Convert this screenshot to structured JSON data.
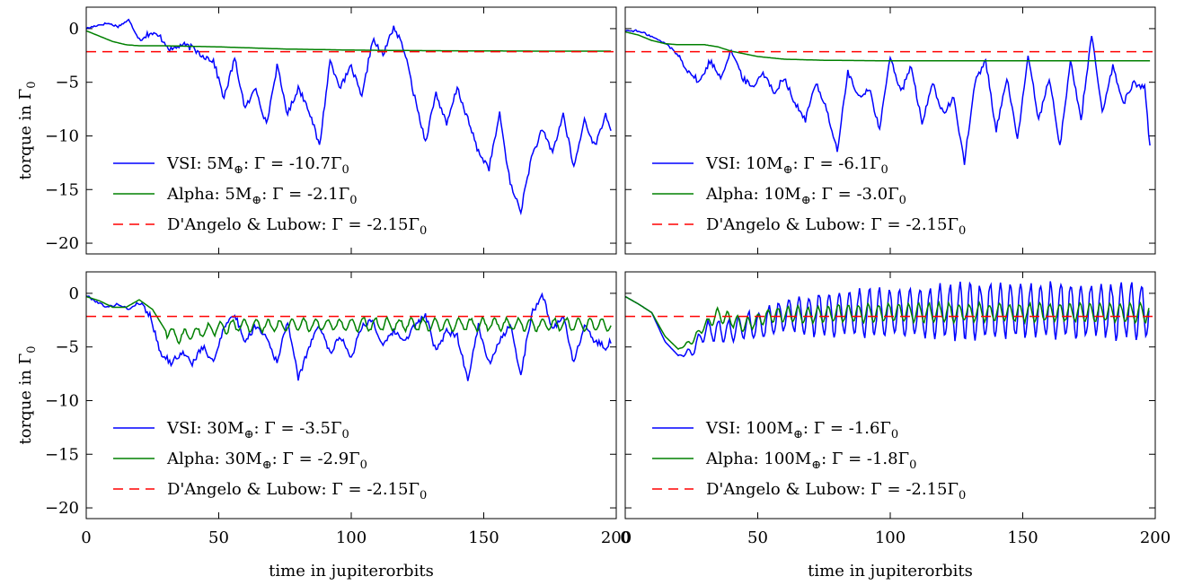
{
  "chart_data": [
    {
      "type": "line",
      "panel": "top-left",
      "xlabel": "",
      "ylabel": "torque in Γ0",
      "xlim": [
        0,
        200
      ],
      "ylim": [
        -21,
        2
      ],
      "xticks": [
        0,
        50,
        100,
        150,
        200
      ],
      "yticks": [
        0,
        -5,
        -10,
        -15,
        -20
      ],
      "ytick_labels": [
        "0",
        "−5",
        "−10",
        "−15",
        "−20"
      ],
      "legend_position": "lower-left",
      "series": [
        {
          "name": "VSI: 5M⊕: Γ = -10.7Γ0",
          "label_prefix": "VSI: 5M",
          "label_mid": ": Γ = -10.7Γ",
          "style": "solid",
          "color": "#0000ff",
          "kind": "vsi",
          "seed": 11,
          "final": -10.7,
          "x": [
            0,
            4,
            8,
            12,
            16,
            20,
            24,
            28,
            32,
            36,
            40,
            44,
            48,
            52,
            56,
            60,
            64,
            68,
            72,
            76,
            80,
            84,
            88,
            92,
            96,
            100,
            104,
            108,
            112,
            116,
            120,
            124,
            128,
            132,
            136,
            140,
            144,
            148,
            152,
            156,
            160,
            164,
            168,
            172,
            176,
            180,
            184,
            188,
            192,
            196,
            198
          ],
          "y": [
            0,
            0.3,
            0.5,
            0.2,
            0.8,
            -1.0,
            -0.4,
            -0.8,
            -2.0,
            -1.5,
            -1.8,
            -2.5,
            -3.0,
            -6.5,
            -2.8,
            -7.5,
            -5.5,
            -9.0,
            -3.5,
            -8.0,
            -5.5,
            -7.5,
            -11.0,
            -3.0,
            -5.5,
            -3.5,
            -6.5,
            -1.0,
            -2.5,
            0.2,
            -2.0,
            -6.5,
            -10.5,
            -6.0,
            -9.0,
            -5.5,
            -8.5,
            -11.5,
            -13.0,
            -8.0,
            -14.5,
            -17.0,
            -12.0,
            -9.5,
            -11.5,
            -8.0,
            -13.0,
            -8.5,
            -11.0,
            -8.0,
            -9.3
          ]
        },
        {
          "name": "Alpha: 5M⊕: Γ = -2.1Γ0",
          "label_prefix": "Alpha: 5M",
          "label_mid": ": Γ = -2.1Γ",
          "style": "solid",
          "color": "#008000",
          "kind": "alpha",
          "x": [
            0,
            5,
            10,
            15,
            20,
            30,
            50,
            75,
            100,
            125,
            150,
            175,
            198
          ],
          "y": [
            -0.2,
            -0.7,
            -1.2,
            -1.5,
            -1.6,
            -1.6,
            -1.7,
            -1.9,
            -2.0,
            -2.05,
            -2.08,
            -2.1,
            -2.1
          ]
        },
        {
          "name": "D'Angelo & Lubow: Γ = -2.15Γ0",
          "label_prefix": "D'Angelo & Lubow: Γ = -2.15Γ",
          "style": "dashed",
          "color": "#ff0000",
          "kind": "ref",
          "value": -2.15
        }
      ]
    },
    {
      "type": "line",
      "panel": "top-right",
      "xlabel": "",
      "ylabel": "",
      "xlim": [
        0,
        200
      ],
      "ylim": [
        -21,
        2
      ],
      "xticks": [
        0,
        50,
        100,
        150,
        200
      ],
      "yticks": [
        0,
        -5,
        -10,
        -15,
        -20
      ],
      "legend_position": "lower-left",
      "series": [
        {
          "name": "VSI: 10M⊕: Γ = -6.1Γ0",
          "label_prefix": "VSI: 10M",
          "label_mid": ": Γ = -6.1Γ",
          "style": "solid",
          "color": "#0000ff",
          "kind": "vsi",
          "x": [
            0,
            4,
            8,
            12,
            16,
            20,
            24,
            28,
            32,
            36,
            40,
            44,
            48,
            52,
            56,
            60,
            64,
            68,
            72,
            76,
            80,
            84,
            88,
            92,
            96,
            100,
            104,
            108,
            112,
            116,
            120,
            124,
            128,
            132,
            136,
            140,
            144,
            148,
            152,
            156,
            160,
            164,
            168,
            172,
            176,
            180,
            184,
            188,
            192,
            196,
            198
          ],
          "y": [
            -0.2,
            -0.2,
            -0.5,
            -1.0,
            -1.5,
            -2.5,
            -4.0,
            -5.0,
            -3.0,
            -4.5,
            -2.0,
            -4.5,
            -5.5,
            -4.0,
            -6.0,
            -4.5,
            -7.0,
            -8.5,
            -5.0,
            -7.5,
            -11.5,
            -4.0,
            -6.5,
            -5.5,
            -9.5,
            -2.5,
            -6.0,
            -3.5,
            -9.0,
            -5.0,
            -8.0,
            -6.5,
            -12.5,
            -5.0,
            -3.0,
            -9.5,
            -4.5,
            -10.5,
            -2.5,
            -8.5,
            -4.5,
            -11.0,
            -3.0,
            -8.5,
            -0.5,
            -8.0,
            -3.5,
            -7.0,
            -5.0,
            -5.5,
            -11.0
          ]
        },
        {
          "name": "Alpha: 10M⊕: Γ = -3.0Γ0",
          "label_prefix": "Alpha: 10M",
          "label_mid": ": Γ = -3.0Γ",
          "style": "solid",
          "color": "#008000",
          "kind": "alpha",
          "x": [
            0,
            5,
            10,
            15,
            20,
            25,
            30,
            35,
            40,
            50,
            60,
            75,
            100,
            125,
            150,
            175,
            198
          ],
          "y": [
            -0.3,
            -0.6,
            -1.1,
            -1.4,
            -1.5,
            -1.5,
            -1.5,
            -1.7,
            -2.1,
            -2.6,
            -2.85,
            -2.95,
            -3.0,
            -3.0,
            -3.0,
            -3.0,
            -3.0
          ]
        },
        {
          "name": "D'Angelo & Lubow: Γ = -2.15Γ0",
          "label_prefix": "D'Angelo & Lubow: Γ = -2.15Γ",
          "style": "dashed",
          "color": "#ff0000",
          "kind": "ref",
          "value": -2.15
        }
      ]
    },
    {
      "type": "line",
      "panel": "bottom-left",
      "xlabel": "time in jupiterorbits",
      "ylabel": "torque in Γ0",
      "xlim": [
        0,
        200
      ],
      "ylim": [
        -21,
        2
      ],
      "xticks": [
        0,
        50,
        100,
        150,
        200
      ],
      "yticks": [
        0,
        -5,
        -10,
        -15,
        -20
      ],
      "legend_position": "lower-left",
      "series": [
        {
          "name": "VSI: 30M⊕: Γ = -3.5Γ0",
          "label_prefix": "VSI: 30M",
          "label_mid": ": Γ = -3.5Γ",
          "style": "solid",
          "color": "#0000ff",
          "kind": "vsi",
          "x": [
            0,
            4,
            8,
            12,
            16,
            20,
            24,
            28,
            32,
            36,
            40,
            44,
            48,
            52,
            56,
            60,
            64,
            68,
            72,
            76,
            80,
            84,
            88,
            92,
            96,
            100,
            104,
            108,
            112,
            116,
            120,
            124,
            128,
            132,
            136,
            140,
            144,
            148,
            152,
            156,
            160,
            164,
            168,
            172,
            176,
            180,
            184,
            188,
            192,
            196,
            198
          ],
          "y": [
            -0.2,
            -0.8,
            -1.3,
            -1.0,
            -1.5,
            -0.8,
            -2.0,
            -5.5,
            -6.5,
            -5.5,
            -6.5,
            -5.0,
            -6.5,
            -3.0,
            -2.0,
            -4.5,
            -3.0,
            -4.0,
            -6.5,
            -2.5,
            -8.0,
            -5.0,
            -3.0,
            -5.5,
            -4.0,
            -6.0,
            -3.0,
            -2.5,
            -5.0,
            -3.5,
            -4.5,
            -3.0,
            -2.0,
            -5.5,
            -3.5,
            -4.0,
            -8.0,
            -3.0,
            -6.5,
            -4.5,
            -3.0,
            -7.5,
            -2.0,
            0.0,
            -3.5,
            -2.0,
            -6.5,
            -3.0,
            -4.5,
            -5.0,
            -4.5
          ]
        },
        {
          "name": "Alpha: 30M⊕: Γ = -2.9Γ0",
          "label_prefix": "Alpha: 30M",
          "label_mid": ": Γ = -2.9Γ",
          "style": "solid",
          "color": "#008000",
          "kind": "alpha",
          "x": [
            0,
            5,
            10,
            15,
            20,
            25,
            30,
            35,
            40,
            50,
            60,
            75,
            100,
            125,
            150,
            175,
            198
          ],
          "y": [
            -0.3,
            -0.7,
            -1.3,
            -1.3,
            -0.6,
            -1.5,
            -3.5,
            -4.0,
            -3.8,
            -3.2,
            -3.0,
            -3.0,
            -2.9,
            -2.9,
            -2.9,
            -2.9,
            -2.9
          ]
        },
        {
          "name": "D'Angelo & Lubow: Γ = -2.15Γ0",
          "label_prefix": "D'Angelo & Lubow: Γ = -2.15Γ",
          "style": "dashed",
          "color": "#ff0000",
          "kind": "ref",
          "value": -2.15
        }
      ]
    },
    {
      "type": "line",
      "panel": "bottom-right",
      "xlabel": "time in jupiterorbits",
      "ylabel": "",
      "xlim": [
        0,
        200
      ],
      "ylim": [
        -21,
        2
      ],
      "xticks": [
        0,
        50,
        100,
        150,
        200
      ],
      "yticks": [
        0,
        -5,
        -10,
        -15,
        -20
      ],
      "legend_position": "lower-left",
      "series": [
        {
          "name": "VSI: 100M⊕: Γ = -1.6Γ0",
          "label_prefix": "VSI: 100M",
          "label_mid": ": Γ = -1.6Γ",
          "style": "solid",
          "color": "#0000ff",
          "kind": "osc",
          "x": [
            0,
            5,
            10,
            15,
            20,
            25,
            30,
            35,
            40,
            45,
            50,
            55,
            60,
            70,
            80,
            100,
            120,
            140,
            160,
            180,
            198
          ],
          "y": [
            -0.3,
            -1.0,
            -1.8,
            -4.5,
            -5.8,
            -5.5,
            -3.5,
            -3.5,
            -3.5,
            -3.0,
            -3.0,
            -2.5,
            -2.0,
            -2.0,
            -1.8,
            -1.8,
            -1.7,
            -1.6,
            -1.6,
            -1.6,
            -1.6
          ],
          "amplitude": [
            0,
            0,
            0,
            0,
            0,
            0.5,
            0.8,
            1.0,
            1.0,
            1.2,
            1.3,
            1.4,
            1.5,
            1.8,
            2.0,
            2.2,
            2.3,
            2.4,
            2.4,
            2.4,
            2.4
          ]
        },
        {
          "name": "Alpha: 100M⊕: Γ = -1.8Γ0",
          "label_prefix": "Alpha: 100M",
          "label_mid": ": Γ = -1.8Γ",
          "style": "solid",
          "color": "#008000",
          "kind": "osc",
          "x": [
            0,
            5,
            10,
            15,
            20,
            25,
            30,
            35,
            40,
            45,
            50,
            55,
            60,
            70,
            80,
            100,
            120,
            140,
            160,
            180,
            198
          ],
          "y": [
            -0.3,
            -1.0,
            -1.8,
            -4.0,
            -5.2,
            -4.5,
            -3.0,
            -2.0,
            -2.5,
            -3.0,
            -2.5,
            -2.0,
            -2.0,
            -2.0,
            -1.9,
            -1.8,
            -1.8,
            -1.8,
            -1.8,
            -1.8,
            -1.8
          ],
          "amplitude": [
            0,
            0,
            0,
            0,
            0,
            0.3,
            0.4,
            0.6,
            0.6,
            0.6,
            0.6,
            0.6,
            0.7,
            0.7,
            0.8,
            0.8,
            0.8,
            0.8,
            0.8,
            0.8,
            0.8
          ]
        },
        {
          "name": "D'Angelo & Lubow: Γ = -2.15Γ0",
          "label_prefix": "D'Angelo & Lubow: Γ = -2.15Γ",
          "style": "dashed",
          "color": "#ff0000",
          "kind": "ref",
          "value": -2.15
        }
      ]
    }
  ]
}
